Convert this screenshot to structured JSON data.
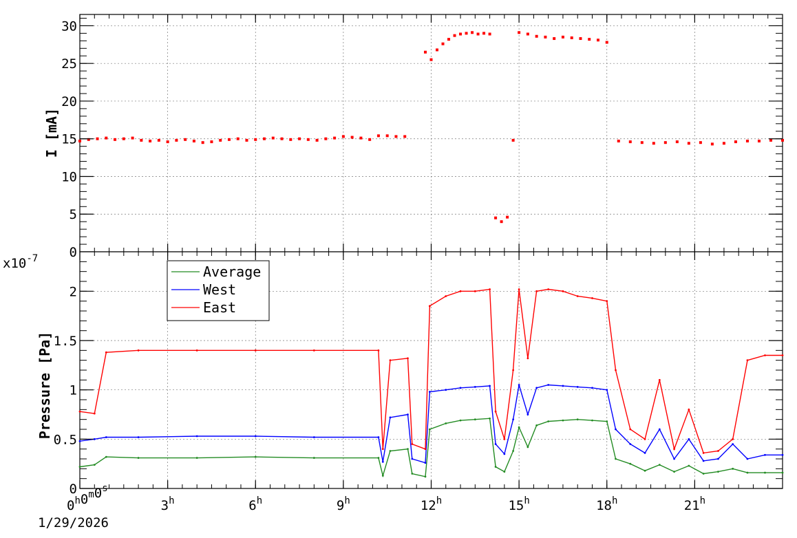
{
  "chart_data": [
    {
      "type": "scatter",
      "panel": "top",
      "ylabel": "I [mA]",
      "ylim": [
        0,
        31.5
      ],
      "yticks": [
        "0",
        "5",
        "10",
        "15",
        "20",
        "25",
        "30"
      ],
      "xlim_hours": [
        0,
        24
      ],
      "grid": true,
      "series": [
        {
          "color": "#ff0000",
          "x_hours": [
            0.0,
            0.3,
            0.6,
            0.9,
            1.2,
            1.5,
            1.8,
            2.1,
            2.4,
            2.7,
            3.0,
            3.3,
            3.6,
            3.9,
            4.2,
            4.5,
            4.8,
            5.1,
            5.4,
            5.7,
            6.0,
            6.3,
            6.6,
            6.9,
            7.2,
            7.5,
            7.8,
            8.1,
            8.4,
            8.7,
            9.0,
            9.3,
            9.6,
            9.9,
            10.2,
            10.5,
            10.8,
            11.1,
            11.8,
            12.0,
            12.2,
            12.4,
            12.6,
            12.8,
            13.0,
            13.2,
            13.4,
            13.6,
            13.8,
            14.0,
            14.2,
            14.4,
            14.6,
            14.8,
            15.0,
            15.3,
            15.6,
            15.9,
            16.2,
            16.5,
            16.8,
            17.1,
            17.4,
            17.7,
            18.0,
            18.4,
            18.8,
            19.2,
            19.6,
            20.0,
            20.4,
            20.8,
            21.2,
            21.6,
            22.0,
            22.4,
            22.8,
            23.2,
            23.6,
            24.0
          ],
          "values": [
            14.7,
            14.9,
            15.0,
            15.1,
            14.9,
            15.0,
            15.1,
            14.8,
            14.7,
            14.8,
            14.6,
            14.8,
            14.9,
            14.7,
            14.5,
            14.6,
            14.8,
            14.9,
            15.0,
            14.8,
            14.9,
            15.0,
            15.1,
            15.0,
            14.9,
            15.0,
            14.9,
            14.8,
            15.0,
            15.1,
            15.3,
            15.2,
            15.1,
            14.9,
            15.4,
            15.4,
            15.3,
            15.3,
            26.5,
            25.5,
            26.8,
            27.6,
            28.2,
            28.7,
            28.9,
            29.0,
            29.1,
            28.9,
            29.0,
            28.9,
            4.5,
            4.0,
            4.6,
            14.8,
            29.1,
            28.9,
            28.6,
            28.5,
            28.3,
            28.5,
            28.4,
            28.3,
            28.2,
            28.1,
            27.8,
            14.7,
            14.6,
            14.5,
            14.4,
            14.5,
            14.6,
            14.4,
            14.5,
            14.3,
            14.4,
            14.6,
            14.7,
            14.7,
            14.8,
            14.8
          ]
        }
      ]
    },
    {
      "type": "line",
      "panel": "bottom",
      "ylabel": "Pressure [Pa]",
      "yscale_label": "x10",
      "yscale_exp": "-7",
      "ylim": [
        0,
        2.4
      ],
      "yticks": [
        "0",
        "0.5",
        "1",
        "1.5",
        "2"
      ],
      "xlim_hours": [
        0,
        24
      ],
      "xticks": [
        {
          "label": "0",
          "sup": "h",
          "label2": "0",
          "sup2": "m",
          "label3": "0",
          "sup3": "s"
        },
        {
          "label": "3",
          "sup": "h"
        },
        {
          "label": "6",
          "sup": "h"
        },
        {
          "label": "9",
          "sup": "h"
        },
        {
          "label": "12",
          "sup": "h"
        },
        {
          "label": "15",
          "sup": "h"
        },
        {
          "label": "18",
          "sup": "h"
        },
        {
          "label": "21",
          "sup": "h"
        }
      ],
      "x_date": "1/29/2026",
      "grid": true,
      "legend": "top-left",
      "series": [
        {
          "name": "Average",
          "color": "#228b22",
          "x_hours": [
            0.0,
            0.5,
            0.9,
            2.0,
            4.0,
            6.0,
            8.0,
            10.2,
            10.35,
            10.6,
            11.2,
            11.35,
            11.8,
            11.95,
            12.5,
            13.0,
            13.5,
            14.0,
            14.2,
            14.5,
            14.8,
            15.0,
            15.3,
            15.6,
            16.0,
            16.5,
            17.0,
            17.5,
            18.0,
            18.3,
            18.8,
            19.3,
            19.8,
            20.3,
            20.8,
            21.3,
            21.8,
            22.3,
            22.8,
            23.4,
            24.0
          ],
          "values": [
            0.22,
            0.24,
            0.32,
            0.31,
            0.31,
            0.32,
            0.31,
            0.31,
            0.13,
            0.38,
            0.4,
            0.15,
            0.12,
            0.6,
            0.66,
            0.69,
            0.7,
            0.71,
            0.22,
            0.17,
            0.38,
            0.62,
            0.42,
            0.64,
            0.68,
            0.69,
            0.7,
            0.69,
            0.68,
            0.3,
            0.25,
            0.18,
            0.24,
            0.17,
            0.23,
            0.15,
            0.17,
            0.2,
            0.16,
            0.16,
            0.16
          ]
        },
        {
          "name": "West",
          "color": "#0000ff",
          "x_hours": [
            0.0,
            0.5,
            0.9,
            2.0,
            4.0,
            6.0,
            8.0,
            10.2,
            10.35,
            10.6,
            11.2,
            11.35,
            11.8,
            11.95,
            12.5,
            13.0,
            13.5,
            14.0,
            14.2,
            14.5,
            14.8,
            15.0,
            15.3,
            15.6,
            16.0,
            16.5,
            17.0,
            17.5,
            18.0,
            18.3,
            18.8,
            19.3,
            19.8,
            20.3,
            20.8,
            21.3,
            21.8,
            22.3,
            22.8,
            23.4,
            24.0
          ],
          "values": [
            0.48,
            0.5,
            0.52,
            0.52,
            0.53,
            0.53,
            0.52,
            0.52,
            0.27,
            0.72,
            0.75,
            0.3,
            0.26,
            0.98,
            1.0,
            1.02,
            1.03,
            1.04,
            0.45,
            0.35,
            0.7,
            1.05,
            0.75,
            1.02,
            1.05,
            1.04,
            1.03,
            1.02,
            1.0,
            0.6,
            0.45,
            0.36,
            0.6,
            0.3,
            0.5,
            0.28,
            0.3,
            0.45,
            0.3,
            0.34,
            0.34
          ]
        },
        {
          "name": "East",
          "color": "#ff0000",
          "x_hours": [
            0.0,
            0.5,
            0.9,
            2.0,
            4.0,
            6.0,
            8.0,
            10.2,
            10.35,
            10.6,
            11.2,
            11.35,
            11.8,
            11.95,
            12.5,
            13.0,
            13.5,
            14.0,
            14.2,
            14.5,
            14.8,
            15.0,
            15.3,
            15.6,
            16.0,
            16.5,
            17.0,
            17.5,
            18.0,
            18.3,
            18.8,
            19.3,
            19.8,
            20.3,
            20.8,
            21.3,
            21.8,
            22.3,
            22.8,
            23.4,
            24.0
          ],
          "values": [
            0.78,
            0.76,
            1.38,
            1.4,
            1.4,
            1.4,
            1.4,
            1.4,
            0.4,
            1.3,
            1.32,
            0.45,
            0.4,
            1.85,
            1.95,
            2.0,
            2.0,
            2.02,
            0.78,
            0.5,
            1.2,
            2.02,
            1.32,
            2.0,
            2.02,
            2.0,
            1.95,
            1.93,
            1.9,
            1.2,
            0.6,
            0.5,
            1.1,
            0.4,
            0.8,
            0.36,
            0.38,
            0.5,
            1.3,
            1.35,
            1.35
          ]
        }
      ]
    }
  ]
}
